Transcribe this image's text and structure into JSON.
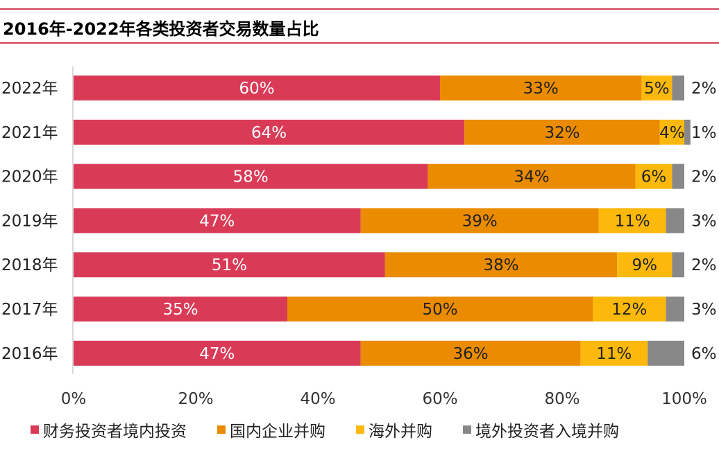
{
  "title": "2016年-2022年各类投资者交易数量占比",
  "chart_data": {
    "type": "bar",
    "orientation": "horizontal",
    "stacked": true,
    "categories": [
      "2022年",
      "2021年",
      "2020年",
      "2019年",
      "2018年",
      "2017年",
      "2016年"
    ],
    "series": [
      {
        "name": "财务投资者境内投资",
        "color": "#d93b57",
        "label_color": "#ffffff",
        "values": [
          60,
          64,
          58,
          47,
          51,
          35,
          47
        ]
      },
      {
        "name": "国内企业并购",
        "color": "#ea8b00",
        "label_color": "#222222",
        "values": [
          33,
          32,
          34,
          39,
          38,
          50,
          36
        ]
      },
      {
        "name": "海外并购",
        "color": "#fcb90c",
        "label_color": "#222222",
        "values": [
          5,
          4,
          6,
          11,
          9,
          12,
          11
        ]
      },
      {
        "name": "境外投资者入境并购",
        "color": "#888888",
        "label_color": "#222222",
        "values": [
          2,
          1,
          2,
          3,
          2,
          3,
          6
        ]
      }
    ],
    "value_suffix": "%",
    "xlim": [
      0,
      100
    ],
    "xticks": [
      "0%",
      "20%",
      "40%",
      "60%",
      "80%",
      "100%"
    ],
    "grid": false,
    "legend_position": "bottom"
  }
}
